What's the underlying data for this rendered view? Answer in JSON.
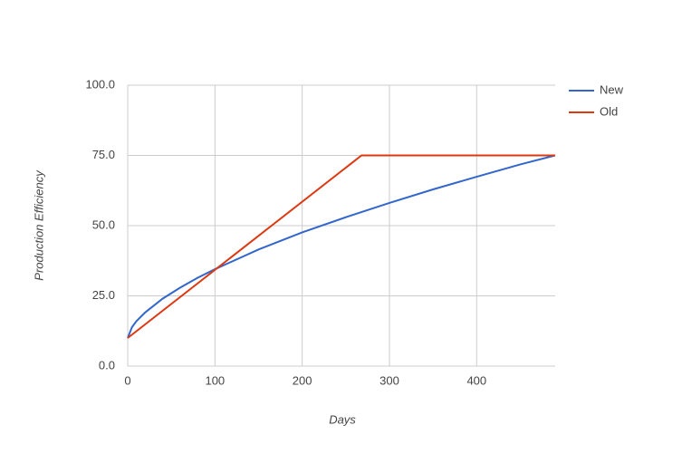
{
  "chart_data": {
    "type": "line",
    "x_label": "Days",
    "y_label": "Production Efficiency",
    "series": [
      {
        "name": "New",
        "color": "#3366cc",
        "x": [
          0,
          5,
          10,
          20,
          40,
          60,
          80,
          100,
          150,
          200,
          250,
          300,
          350,
          400,
          450,
          490
        ],
        "values": [
          10,
          13.9,
          16.0,
          19.1,
          24.0,
          27.9,
          31.4,
          34.5,
          41.5,
          47.6,
          53.0,
          58.1,
          62.9,
          67.4,
          71.8,
          75
        ]
      },
      {
        "name": "Old",
        "color": "#dc3912",
        "x": [
          0,
          268,
          490
        ],
        "values": [
          10,
          75,
          75
        ]
      }
    ],
    "xlim": [
      0,
      490
    ],
    "xticks": [
      0,
      100,
      200,
      300,
      400
    ],
    "ylim": [
      0,
      100
    ],
    "yticks": [
      {
        "value": 0,
        "label": "0.0"
      },
      {
        "value": 25,
        "label": "25.0"
      },
      {
        "value": 50,
        "label": "50.0"
      },
      {
        "value": 75,
        "label": "75.0"
      },
      {
        "value": 100,
        "label": "100.0"
      }
    ],
    "grid": true,
    "legend": "right"
  }
}
